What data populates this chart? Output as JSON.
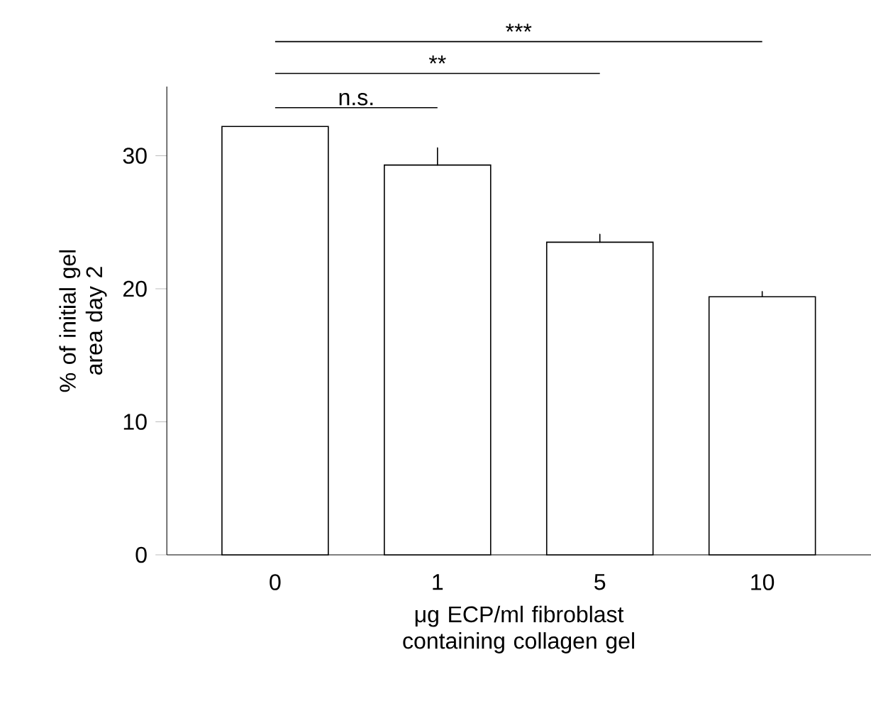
{
  "chart_data": {
    "type": "bar",
    "xlabel": "μg ECP/ml fibroblast containing collagen gel",
    "ylabel": "% of initial gel area day 2",
    "categories": [
      "0",
      "1",
      "5",
      "10"
    ],
    "values": [
      32.2,
      29.3,
      23.5,
      19.4
    ],
    "errors": [
      null,
      [
        29.3,
        30.6
      ],
      [
        23.5,
        24.1
      ],
      [
        19.4,
        19.8
      ]
    ],
    "color": "#ffffff",
    "ylim": [
      0,
      35.2
    ],
    "yticks": [
      0,
      10,
      20,
      30
    ],
    "grid": false,
    "annotations": [
      "n.s.",
      "**",
      "***"
    ]
  }
}
